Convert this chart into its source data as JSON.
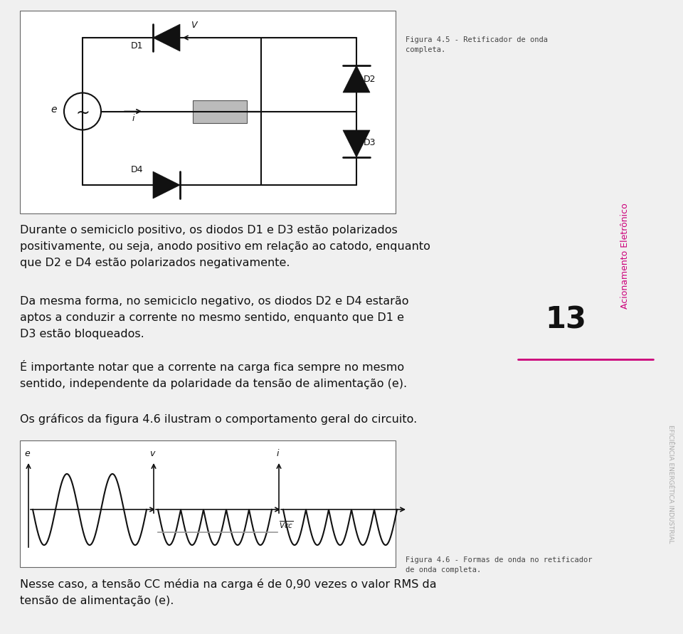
{
  "bg_color": "#f0f0f0",
  "white": "#ffffff",
  "black": "#111111",
  "pink": "#cc007a",
  "gray_line": "#999999",
  "gray_text": "#aaaaaa",
  "dark_gray": "#444444",
  "caption1": "Figura 4.5 - Retificador de onda\ncompleta.",
  "caption2": "Figura 4.6 - Formas de onda no retificador\nde onda completa.",
  "para1": "Durante o semiciclo positivo, os diodos D1 e D3 estão polarizados\npositivamente, ou seja, anodo positivo em relação ao catodo, enquanto\nque D2 e D4 estão polarizados negativamente.",
  "para2": "Da mesma forma, no semiciclo negativo, os diodos D2 e D4 estarão\naptos a conduzir a corrente no mesmo sentido, enquanto que D1 e\nD3 estão bloqueados.",
  "para3": "É importante notar que a corrente na carga fica sempre no mesmo\nsentido, independente da polaridade da tensão de alimentação (e).",
  "para4": "Os gráficos da figura 4.6 ilustram o comportamento geral do circuito.",
  "page_num": "13",
  "side1": "Acionamento Eletrônico",
  "side2": "EFICIÊNCIA ENERGÉTICA INDUSTRIAL",
  "footer": "Nesse caso, a tensão CC média na carga é de 0,90 vezes o valor RMS da\ntensão de alimentação (e)."
}
